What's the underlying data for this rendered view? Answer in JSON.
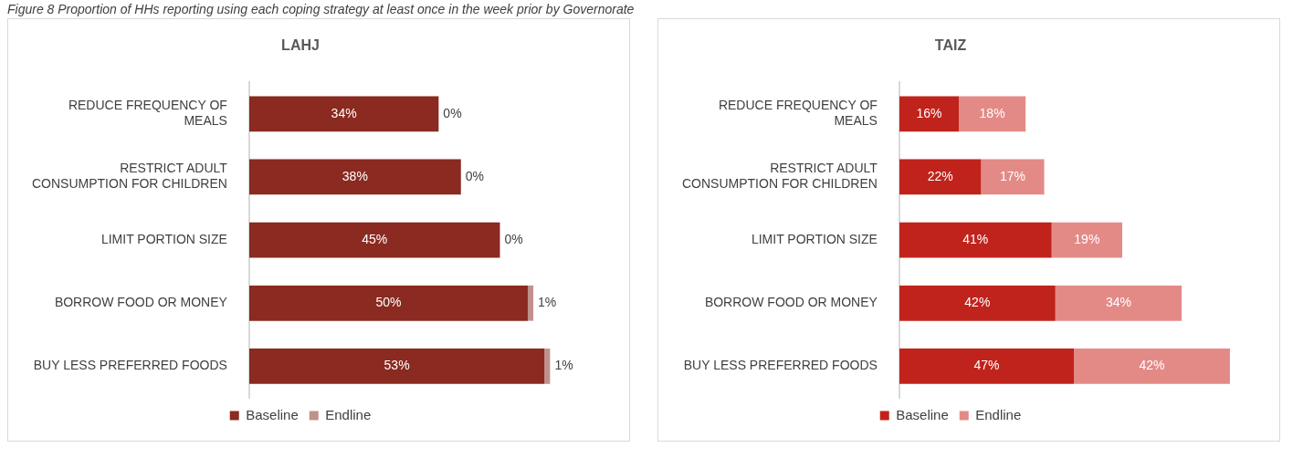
{
  "chart_data": [
    {
      "type": "bar",
      "title": "LAHJ",
      "annotations": [
        "Figure 8 Proportion of HHs reporting using each coping strategy at least once in the week prior by Governorate"
      ],
      "orientation": "horizontal",
      "stacked": true,
      "legend": "bottom",
      "categories": [
        "REDUCE FREQUENCY OF MEALS",
        "RESTRICT ADULT CONSUMPTION FOR CHILDREN",
        "LIMIT PORTION SIZE",
        "BORROW FOOD OR MONEY",
        "BUY LESS PREFERRED FOODS"
      ],
      "series": [
        {
          "name": "Baseline",
          "color": "#8a2a20",
          "values": [
            34,
            38,
            45,
            50,
            53
          ],
          "value_labels": [
            "34%",
            "38%",
            "45%",
            "50%",
            "53%"
          ]
        },
        {
          "name": "Endline",
          "color": "#c0918c",
          "values": [
            0,
            0,
            0,
            1,
            1
          ],
          "value_labels": [
            "0%",
            "0%",
            "0%",
            "1%",
            "1%"
          ]
        }
      ]
    },
    {
      "type": "bar",
      "title": "TAIZ",
      "orientation": "horizontal",
      "stacked": true,
      "legend": "bottom",
      "categories": [
        "REDUCE FREQUENCY OF MEALS",
        "RESTRICT ADULT CONSUMPTION FOR CHILDREN",
        "LIMIT PORTION SIZE",
        "BORROW FOOD OR MONEY",
        "BUY LESS PREFERRED FOODS"
      ],
      "series": [
        {
          "name": "Baseline",
          "color": "#c0231b",
          "values": [
            16,
            22,
            41,
            42,
            47
          ],
          "value_labels": [
            "16%",
            "22%",
            "41%",
            "42%",
            "47%"
          ]
        },
        {
          "name": "Endline",
          "color": "#e38a87",
          "values": [
            18,
            17,
            19,
            34,
            42
          ],
          "value_labels": [
            "18%",
            "17%",
            "19%",
            "34%",
            "42%"
          ]
        }
      ]
    }
  ]
}
